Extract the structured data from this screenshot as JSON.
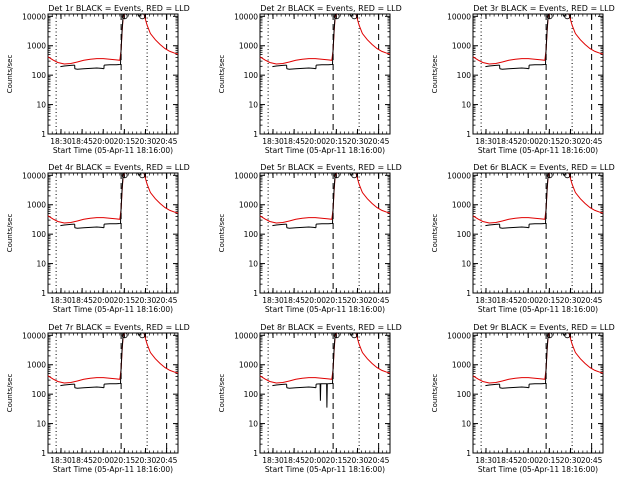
{
  "figure": {
    "xlabel": "Start Time (05-Apr-11 18:16:00)",
    "ylabel": "Counts/sec",
    "colors": {
      "events": "#000000",
      "lld": "#e00000",
      "axes": "#000000"
    }
  },
  "chart_data": {
    "type": "line",
    "layout": "3x3 grid",
    "x_units": "minutes after 18:16:00 (05-Apr-11)",
    "y_scale": "log",
    "ylim": [
      1,
      12000
    ],
    "xlim": [
      0,
      40
    ],
    "x_tick_labels": [
      {
        "t": 4,
        "label": "18:30"
      },
      {
        "t": 10.5,
        "label": "18:45"
      },
      {
        "t": 17,
        "label": "20:00"
      },
      {
        "t": 23.5,
        "label": "20:15"
      },
      {
        "t": 30,
        "label": "20:30"
      },
      {
        "t": 36.5,
        "label": "20:45"
      }
    ],
    "y_ticks": [
      1,
      10,
      100,
      1000,
      10000
    ],
    "y_tick_labels": [
      "1",
      "10",
      "100",
      "1000",
      "10000"
    ],
    "vlines": [
      {
        "t": 2.5,
        "style": "dotted"
      },
      {
        "t": 22.5,
        "style": "dashed"
      },
      {
        "t": 30.5,
        "style": "dotted"
      },
      {
        "t": 36.5,
        "style": "dashed"
      }
    ],
    "panels": [
      {
        "title": "Det 1r BLACK = Events, RED = LLD",
        "gap_dip": false
      },
      {
        "title": "Det 2r BLACK = Events, RED = LLD",
        "gap_dip": false
      },
      {
        "title": "Det 3r BLACK = Events, RED = LLD",
        "gap_dip": false
      },
      {
        "title": "Det 4r BLACK = Events, RED = LLD",
        "gap_dip": false
      },
      {
        "title": "Det 5r BLACK = Events, RED = LLD",
        "gap_dip": false
      },
      {
        "title": "Det 6r BLACK = Events, RED = LLD",
        "gap_dip": false
      },
      {
        "title": "Det 7r BLACK = Events, RED = LLD",
        "gap_dip": false
      },
      {
        "title": "Det 8r BLACK = Events, RED = LLD",
        "gap_dip": true
      },
      {
        "title": "Det 9r BLACK = Events, RED = LLD",
        "gap_dip": false
      }
    ],
    "series": [
      {
        "name": "LLD",
        "color": "red",
        "segments": [
          [
            [
              0,
              420
            ],
            [
              1.5,
              330
            ],
            [
              3,
              270
            ],
            [
              5,
              240
            ],
            [
              7,
              250
            ],
            [
              9,
              280
            ],
            [
              11,
              320
            ],
            [
              13,
              350
            ],
            [
              15,
              365
            ],
            [
              17,
              365
            ],
            [
              19,
              350
            ],
            [
              21,
              330
            ],
            [
              22.1,
              320
            ],
            [
              22.5,
              700
            ],
            [
              22.8,
              3000
            ],
            [
              23.1,
              9000
            ],
            [
              23.4,
              12000
            ]
          ],
          [
            [
              29.5,
              12000
            ],
            [
              30.5,
              5000
            ],
            [
              31.5,
              2600
            ],
            [
              33,
              1600
            ],
            [
              34.5,
              1100
            ],
            [
              36,
              800
            ],
            [
              37.5,
              640
            ],
            [
              39,
              560
            ],
            [
              40,
              520
            ]
          ]
        ]
      },
      {
        "name": "Events",
        "color": "black",
        "segments": [
          [
            [
              3.8,
              195
            ],
            [
              5,
              205
            ],
            [
              7,
              215
            ],
            [
              8.2,
              220
            ]
          ],
          [
            [
              8.2,
              220
            ],
            [
              8.25,
              165
            ]
          ],
          [
            [
              8.25,
              165
            ],
            [
              9,
              160
            ],
            [
              11,
              165
            ],
            [
              13,
              170
            ],
            [
              15,
              175
            ],
            [
              16.5,
              170
            ],
            [
              17.2,
              165
            ]
          ],
          [
            [
              17.2,
              165
            ],
            [
              17.25,
              220
            ]
          ],
          [
            [
              17.25,
              220
            ],
            [
              19,
              225
            ],
            [
              21,
              225
            ],
            [
              22.1,
              230
            ]
          ],
          [
            [
              22.1,
              230
            ],
            [
              22.3,
              230
            ],
            [
              22.5,
              800
            ],
            [
              22.8,
              3500
            ],
            [
              23.1,
              10000
            ],
            [
              23.3,
              12000
            ]
          ],
          [
            [
              27.6,
              12000
            ],
            [
              28,
              10000
            ],
            [
              28.4,
              11000
            ]
          ]
        ]
      }
    ],
    "markers": [
      {
        "t": 23.6,
        "value": 10000
      },
      {
        "t": 29,
        "value": 10000
      }
    ]
  }
}
